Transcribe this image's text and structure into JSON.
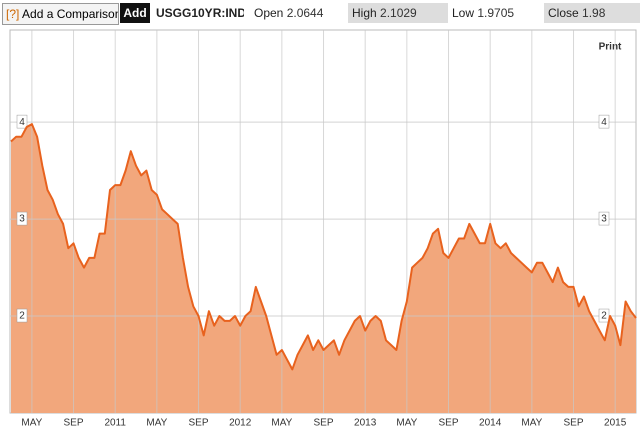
{
  "toolbar": {
    "compare_icon": "[?]",
    "compare": "Add a Comparison",
    "add": "Add",
    "ticker": "USGG10YR:IND",
    "open_label": "Open",
    "open": 2.0644,
    "high_label": "High",
    "high": 2.1029,
    "low_label": "Low",
    "low": 1.9705,
    "close_label": "Close",
    "close": 1.98
  },
  "print": "Print",
  "chart_data": {
    "type": "area",
    "x": [
      2,
      2.5,
      3,
      3.5,
      4,
      4.5,
      5,
      5.5,
      6,
      6.5,
      7,
      7.5,
      8,
      8.5,
      9,
      9.5,
      10,
      10.5,
      11,
      11.5,
      12,
      12.5,
      13,
      13.5,
      14,
      14.5,
      15,
      15.5,
      16,
      16.5,
      17,
      17.5,
      18,
      18.5,
      19,
      19.5,
      20,
      20.5,
      21,
      21.5,
      22,
      22.5,
      23,
      23.5,
      24,
      24.5,
      25,
      25.5,
      26,
      26.5,
      27,
      27.5,
      28,
      28.5,
      29,
      29.5,
      30,
      30.5,
      31,
      31.5,
      32,
      32.5,
      33,
      33.5,
      34,
      34.5,
      35,
      35.5,
      36,
      36.5,
      37,
      37.5,
      38,
      38.5,
      39,
      39.5,
      40,
      40.5,
      41,
      41.5,
      42,
      42.5,
      43,
      43.5,
      44,
      44.5,
      45,
      45.5,
      46,
      46.5,
      47,
      47.5,
      48,
      48.5,
      49,
      49.5,
      50,
      50.5,
      51,
      51.5,
      52,
      52.5,
      53,
      53.5,
      54,
      54.5,
      55,
      55.5,
      56,
      56.5,
      57,
      57.5,
      58,
      58.5,
      59,
      59.5,
      60,
      60.5,
      61,
      61.5,
      62
    ],
    "series": [
      {
        "name": "USGG10YR:IND",
        "color": "#e8621e",
        "fill": "#f2a77c",
        "values": [
          3.8,
          3.85,
          3.85,
          3.95,
          3.98,
          3.85,
          3.55,
          3.3,
          3.2,
          3.05,
          2.95,
          2.7,
          2.75,
          2.6,
          2.5,
          2.6,
          2.6,
          2.85,
          2.85,
          3.3,
          3.35,
          3.35,
          3.5,
          3.7,
          3.55,
          3.45,
          3.5,
          3.3,
          3.25,
          3.1,
          3.05,
          3.0,
          2.95,
          2.6,
          2.3,
          2.1,
          2.0,
          1.8,
          2.05,
          1.9,
          2.0,
          1.95,
          1.95,
          2.0,
          1.9,
          2.0,
          2.05,
          2.3,
          2.15,
          2.0,
          1.8,
          1.6,
          1.65,
          1.55,
          1.45,
          1.6,
          1.7,
          1.8,
          1.65,
          1.75,
          1.65,
          1.7,
          1.75,
          1.6,
          1.75,
          1.85,
          1.95,
          2.0,
          1.85,
          1.95,
          2.0,
          1.95,
          1.75,
          1.7,
          1.65,
          1.95,
          2.15,
          2.5,
          2.55,
          2.6,
          2.7,
          2.85,
          2.9,
          2.65,
          2.6,
          2.7,
          2.8,
          2.8,
          2.95,
          2.85,
          2.75,
          2.75,
          2.95,
          2.75,
          2.7,
          2.75,
          2.65,
          2.6,
          2.55,
          2.5,
          2.45,
          2.55,
          2.55,
          2.45,
          2.35,
          2.5,
          2.35,
          2.3,
          2.3,
          2.1,
          2.2,
          2.05,
          1.95,
          1.85,
          1.75,
          2.0,
          1.9,
          1.7,
          2.15,
          2.05,
          1.98
        ]
      }
    ],
    "xlim": [
      1.9,
      62
    ],
    "xticks": [
      {
        "value": 4,
        "label": "MAY"
      },
      {
        "value": 8,
        "label": "SEP"
      },
      {
        "value": 12,
        "label": "2011"
      },
      {
        "value": 16,
        "label": "MAY"
      },
      {
        "value": 20,
        "label": "SEP"
      },
      {
        "value": 24,
        "label": "2012"
      },
      {
        "value": 28,
        "label": "MAY"
      },
      {
        "value": 32,
        "label": "SEP"
      },
      {
        "value": 36,
        "label": "2013"
      },
      {
        "value": 40,
        "label": "MAY"
      },
      {
        "value": 44,
        "label": "SEP"
      },
      {
        "value": 48,
        "label": "2014"
      },
      {
        "value": 52,
        "label": "MAY"
      },
      {
        "value": 56,
        "label": "SEP"
      },
      {
        "value": 60,
        "label": "2015"
      }
    ],
    "ylim": [
      1,
      4.95
    ],
    "yticks": [
      2,
      3,
      4
    ],
    "grid": true
  }
}
